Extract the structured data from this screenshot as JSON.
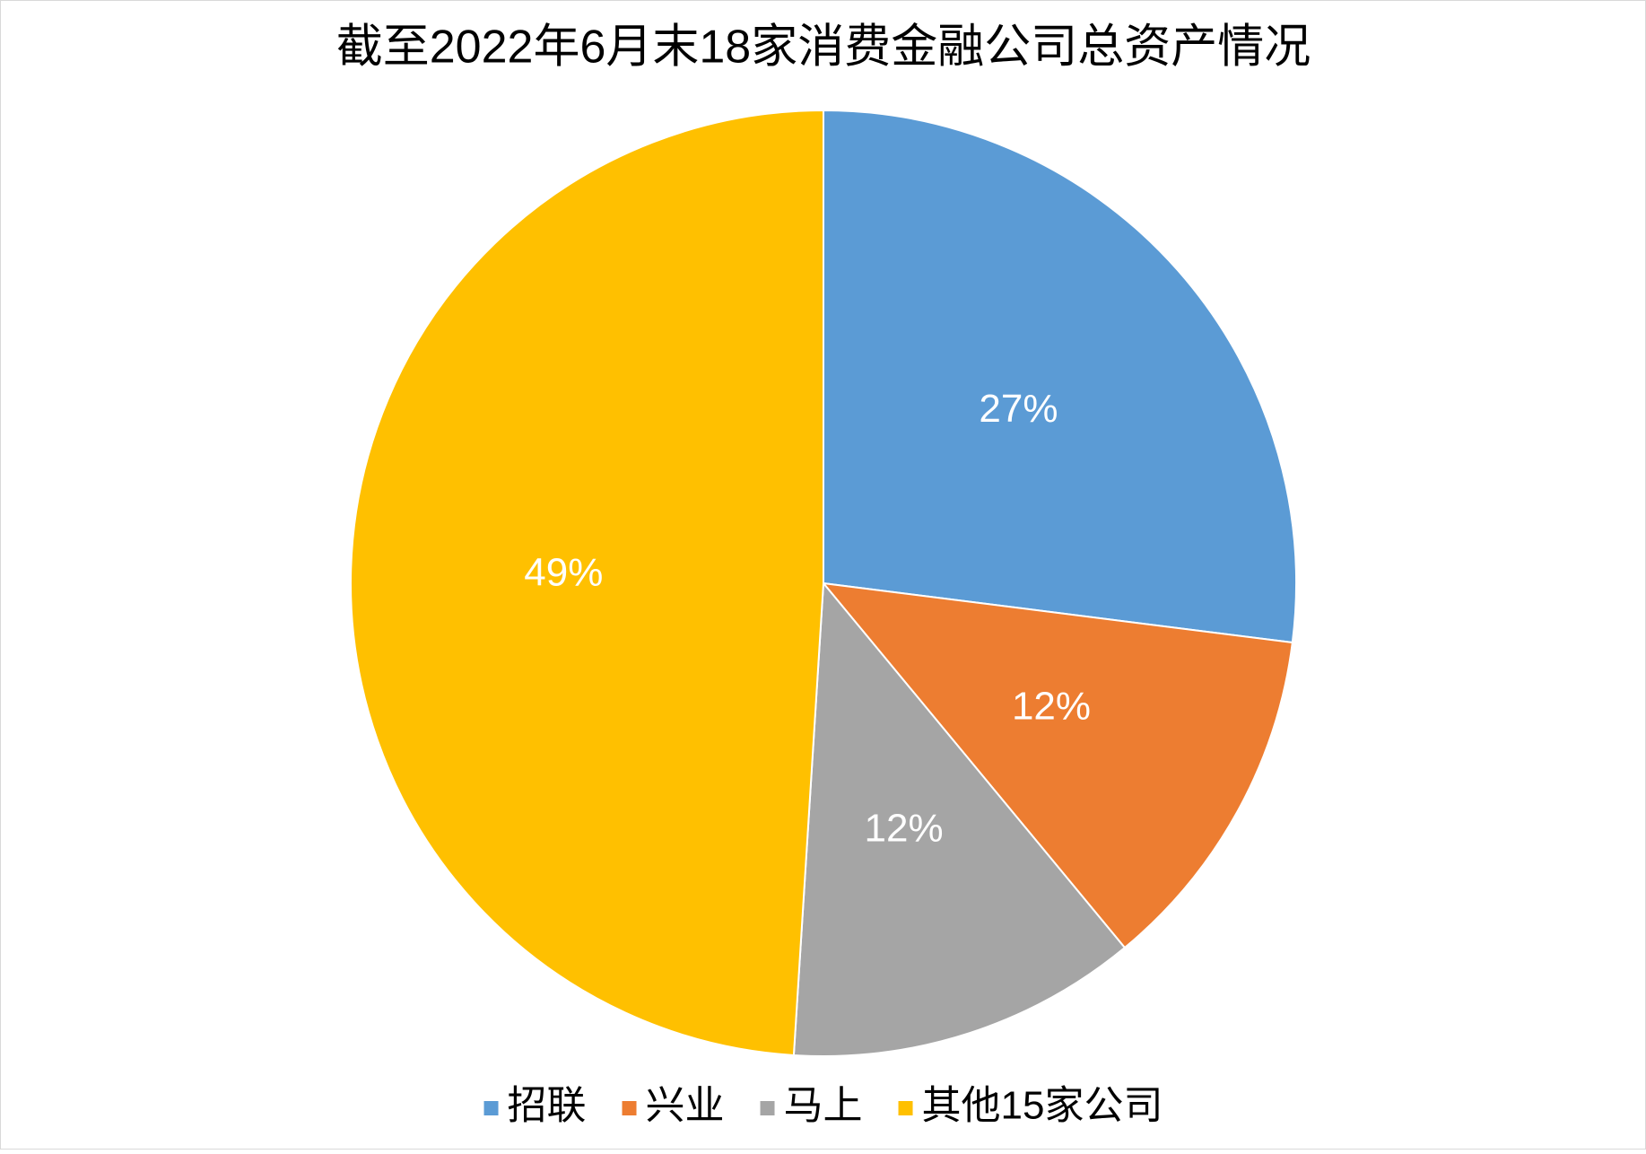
{
  "chart_data": {
    "type": "pie",
    "title": "截至2022年6月末18家消费金融公司总资产情况",
    "categories": [
      "招联",
      "兴业",
      "马上",
      "其他15家公司"
    ],
    "values": [
      27,
      12,
      12,
      49
    ],
    "value_labels": [
      "27%",
      "12%",
      "12%",
      "49%"
    ],
    "colors": [
      "#5b9bd5",
      "#ed7d31",
      "#a5a5a5",
      "#ffc000"
    ],
    "legend": "bottom"
  }
}
